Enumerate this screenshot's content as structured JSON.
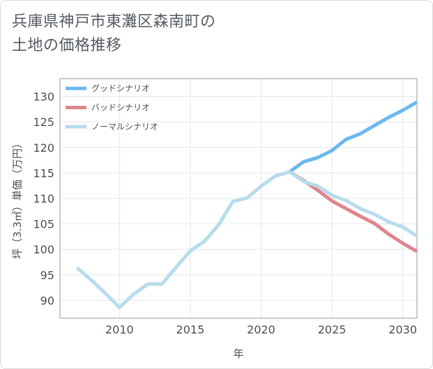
{
  "title_line1": "兵庫県神戸市東灘区森南町の",
  "title_line2": "土地の価格推移",
  "chart_data": {
    "type": "line",
    "title": "兵庫県神戸市東灘区森南町の土地の価格推移",
    "xlabel": "年",
    "ylabel": "坪（3.3㎡）単価（万円）",
    "xlim": [
      2005.8,
      2031
    ],
    "ylim": [
      86.5,
      133.5
    ],
    "x_ticks": [
      2010,
      2015,
      2020,
      2025,
      2030
    ],
    "y_ticks": [
      90,
      95,
      100,
      105,
      110,
      115,
      120,
      125,
      130
    ],
    "grid": true,
    "legend_position": "top-left",
    "series": [
      {
        "name": "グッドシナリオ",
        "color": "#6cb8ef",
        "x": [
          2022,
          2023,
          2024,
          2025,
          2026,
          2027,
          2028,
          2029,
          2030,
          2031
        ],
        "values": [
          115.2,
          117.2,
          118.0,
          119.4,
          121.6,
          122.7,
          124.3,
          125.9,
          127.3,
          128.9
        ]
      },
      {
        "name": "バッドシナリオ",
        "color": "#e0848e",
        "x": [
          2022,
          2023,
          2024,
          2025,
          2026,
          2027,
          2028,
          2029,
          2030,
          2031
        ],
        "values": [
          115.2,
          113.5,
          111.6,
          109.5,
          108.0,
          106.5,
          105.1,
          103.0,
          101.2,
          99.6
        ]
      },
      {
        "name": "ノーマルシナリオ",
        "color": "#b7dcec",
        "x": [
          2007,
          2008,
          2009,
          2010,
          2011,
          2012,
          2013,
          2014,
          2015,
          2016,
          2017,
          2018,
          2019,
          2020,
          2021,
          2022,
          2023,
          2024,
          2025,
          2026,
          2027,
          2028,
          2029,
          2030,
          2031
        ],
        "values": [
          96.4,
          94.0,
          91.4,
          88.6,
          91.2,
          93.2,
          93.2,
          96.5,
          99.7,
          101.6,
          104.8,
          109.4,
          110.1,
          112.4,
          114.4,
          115.2,
          113.3,
          112.4,
          110.6,
          109.6,
          108.0,
          106.9,
          105.4,
          104.4,
          102.6
        ]
      }
    ]
  }
}
